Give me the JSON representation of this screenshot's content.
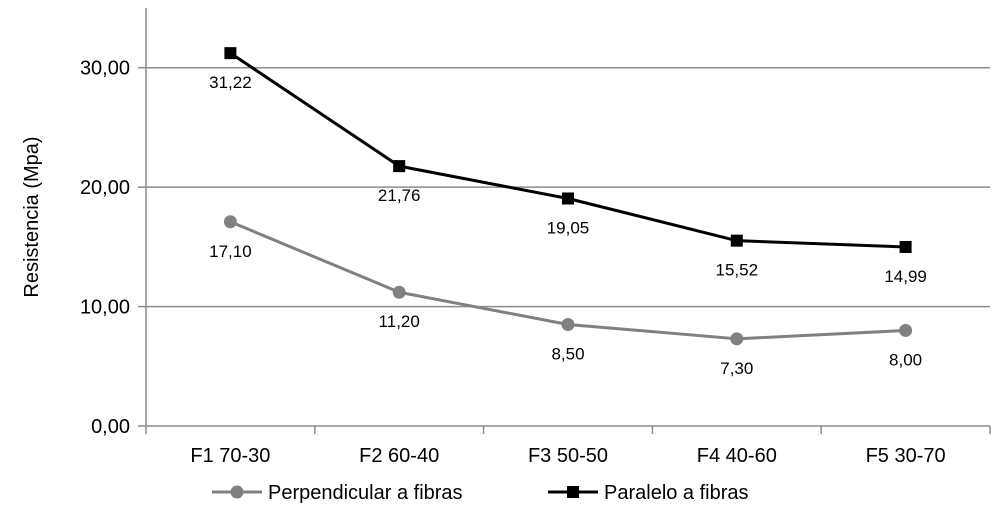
{
  "chart_data": {
    "type": "line",
    "title": "",
    "xlabel": "",
    "ylabel": "Resistencia  (Mpa)",
    "categories": [
      "F1 70-30",
      "F2 60-40",
      "F3 50-50",
      "F4 40-60",
      "F5 30-70"
    ],
    "ylim": [
      0,
      35
    ],
    "yticks": [
      0,
      10,
      20,
      30
    ],
    "ytick_labels": [
      "0,00",
      "10,00",
      "20,00",
      "30,00"
    ],
    "grid": "horizontal",
    "legend_position": "bottom",
    "series": [
      {
        "name": "Perpendicular a fibras",
        "values": [
          17.1,
          11.2,
          8.5,
          7.3,
          8.0
        ],
        "labels": [
          "17,10",
          "11,20",
          "8,50",
          "7,30",
          "8,00"
        ],
        "color": "#808080",
        "marker": "circle"
      },
      {
        "name": "Paralelo a fibras",
        "values": [
          31.22,
          21.76,
          19.05,
          15.52,
          14.99
        ],
        "labels": [
          "31,22",
          "21,76",
          "19,05",
          "15,52",
          "14,99"
        ],
        "color": "#000000",
        "marker": "square"
      }
    ]
  }
}
